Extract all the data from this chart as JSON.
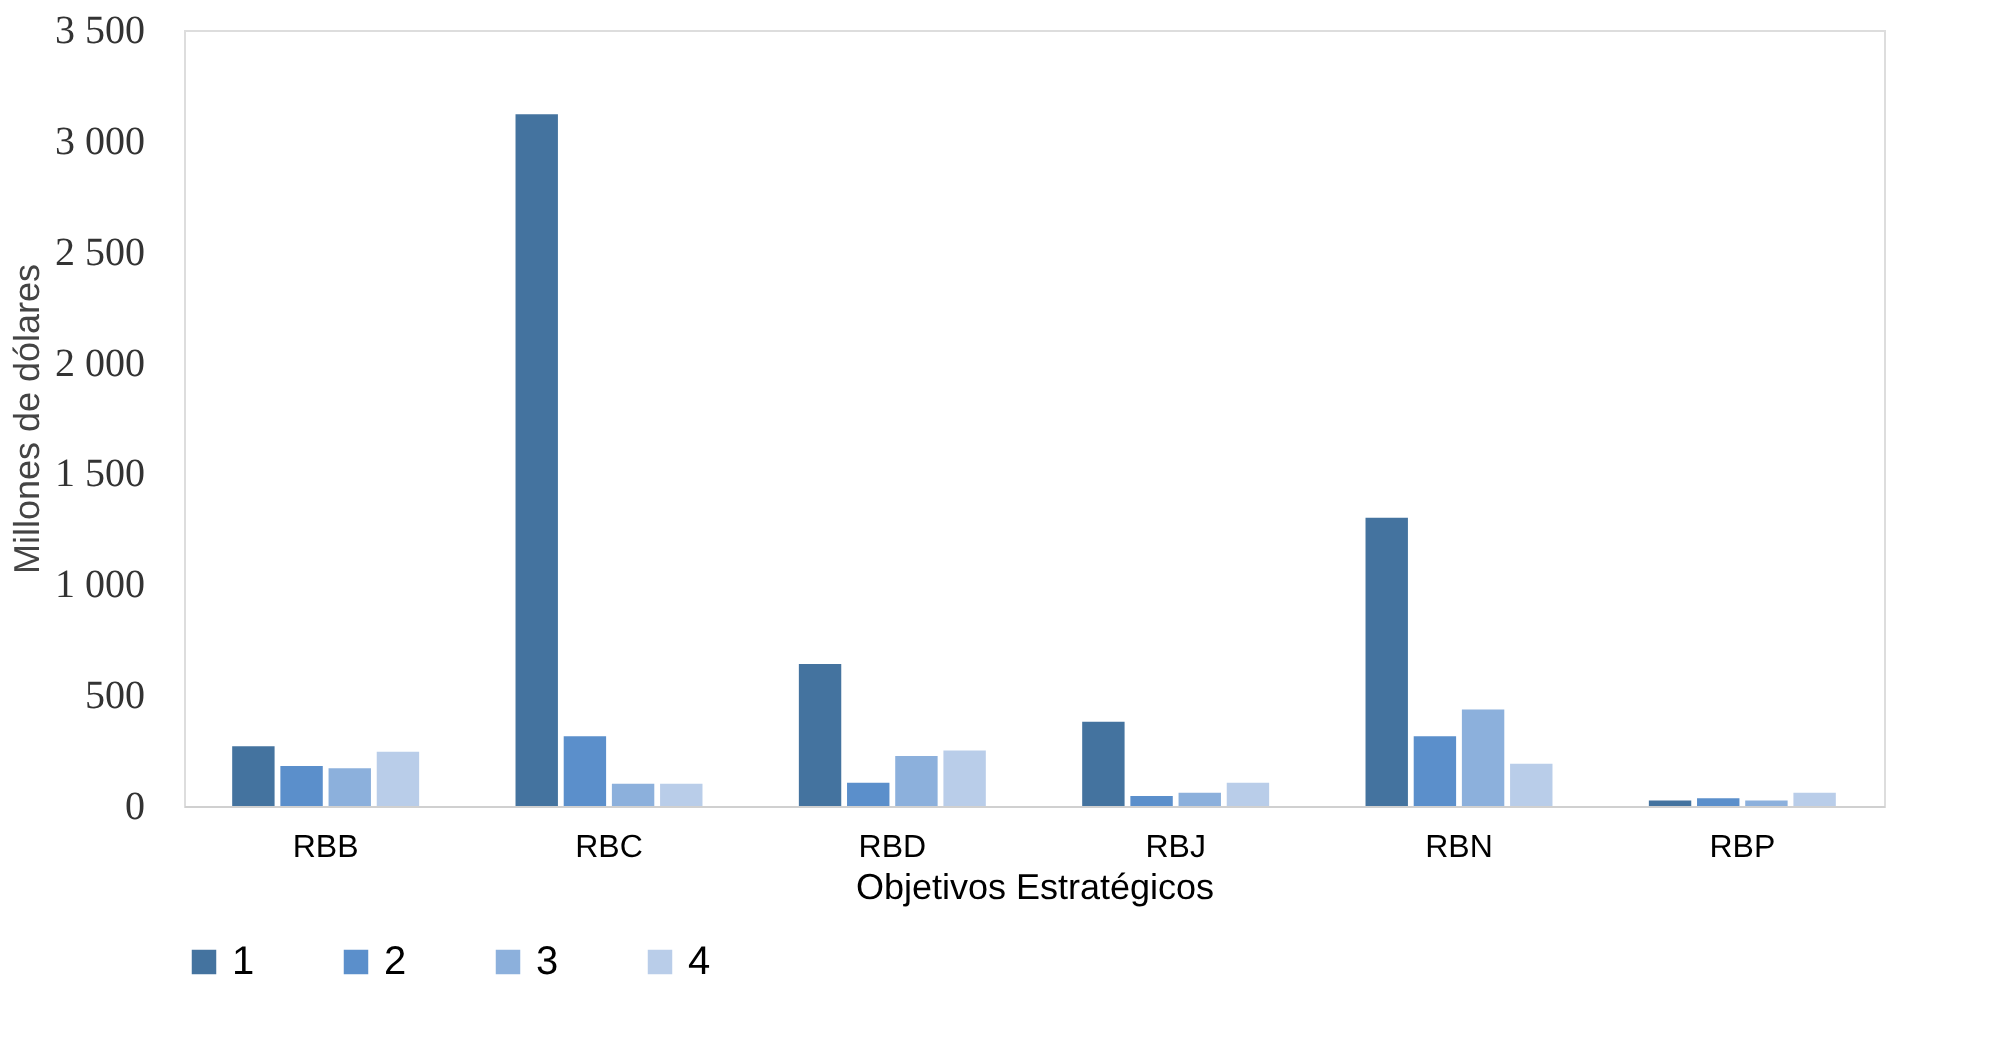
{
  "chart_data": {
    "type": "bar",
    "xlabel": "Objetivos Estratégicos",
    "ylabel": "Millones de dólares",
    "categories": [
      "RBB",
      "RBC",
      "RBD",
      "RBJ",
      "RBN",
      "RBP"
    ],
    "series": [
      {
        "name": "1",
        "color": "#44739f",
        "values": [
          270,
          3120,
          640,
          380,
          1300,
          25
        ]
      },
      {
        "name": "2",
        "color": "#5b8fcb",
        "values": [
          180,
          315,
          105,
          45,
          315,
          35
        ]
      },
      {
        "name": "3",
        "color": "#8cb0dc",
        "values": [
          170,
          100,
          225,
          60,
          435,
          25
        ]
      },
      {
        "name": "4",
        "color": "#b9cde9",
        "values": [
          245,
          100,
          250,
          105,
          190,
          60
        ]
      }
    ],
    "ylim": [
      0,
      3500
    ],
    "yticks": [
      0,
      {
        "value": 500,
        "label": "500"
      },
      {
        "value": 1000,
        "label": "1 000"
      },
      {
        "value": 1500,
        "label": "1 500"
      },
      {
        "value": 2000,
        "label": "2 000"
      },
      {
        "value": 2500,
        "label": "2 500"
      },
      {
        "value": 3000,
        "label": "3 000"
      },
      {
        "value": 3500,
        "label": "3 500"
      }
    ],
    "grid": false,
    "legend": "bottom"
  }
}
